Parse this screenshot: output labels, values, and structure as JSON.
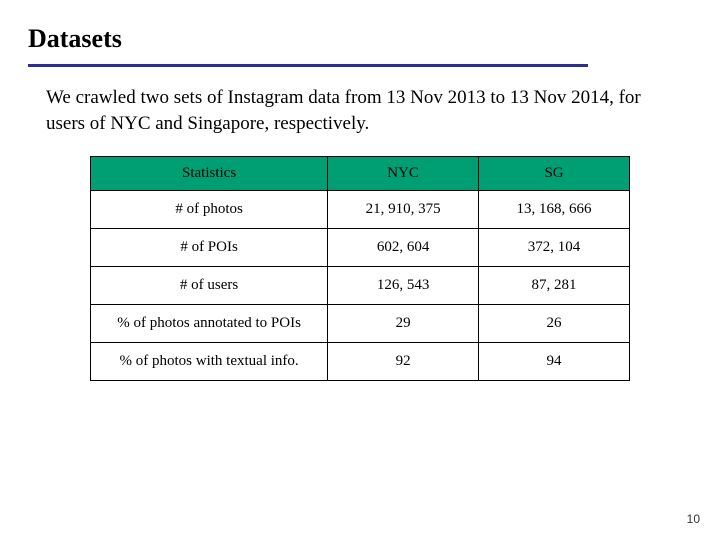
{
  "title": "Datasets",
  "description": "We crawled two sets of Instagram data from 13 Nov 2013 to 13 Nov 2014, for users of NYC and Singapore, respectively.",
  "table": {
    "columns": [
      "Statistics",
      "NYC",
      "SG"
    ],
    "rows": [
      [
        "# of photos",
        "21, 910, 375",
        "13, 168, 666"
      ],
      [
        "# of POIs",
        "602, 604",
        "372, 104"
      ],
      [
        "# of users",
        "126, 543",
        "87, 281"
      ],
      [
        "% of photos annotated to POIs",
        "29",
        "26"
      ],
      [
        "% of photos with textual info.",
        "92",
        "94"
      ]
    ],
    "header_bg": "#009e73",
    "border_color": "#000000",
    "col_widths_pct": [
      44,
      28,
      28
    ]
  },
  "underline_color": "#2d2f8f",
  "page_number": "10"
}
